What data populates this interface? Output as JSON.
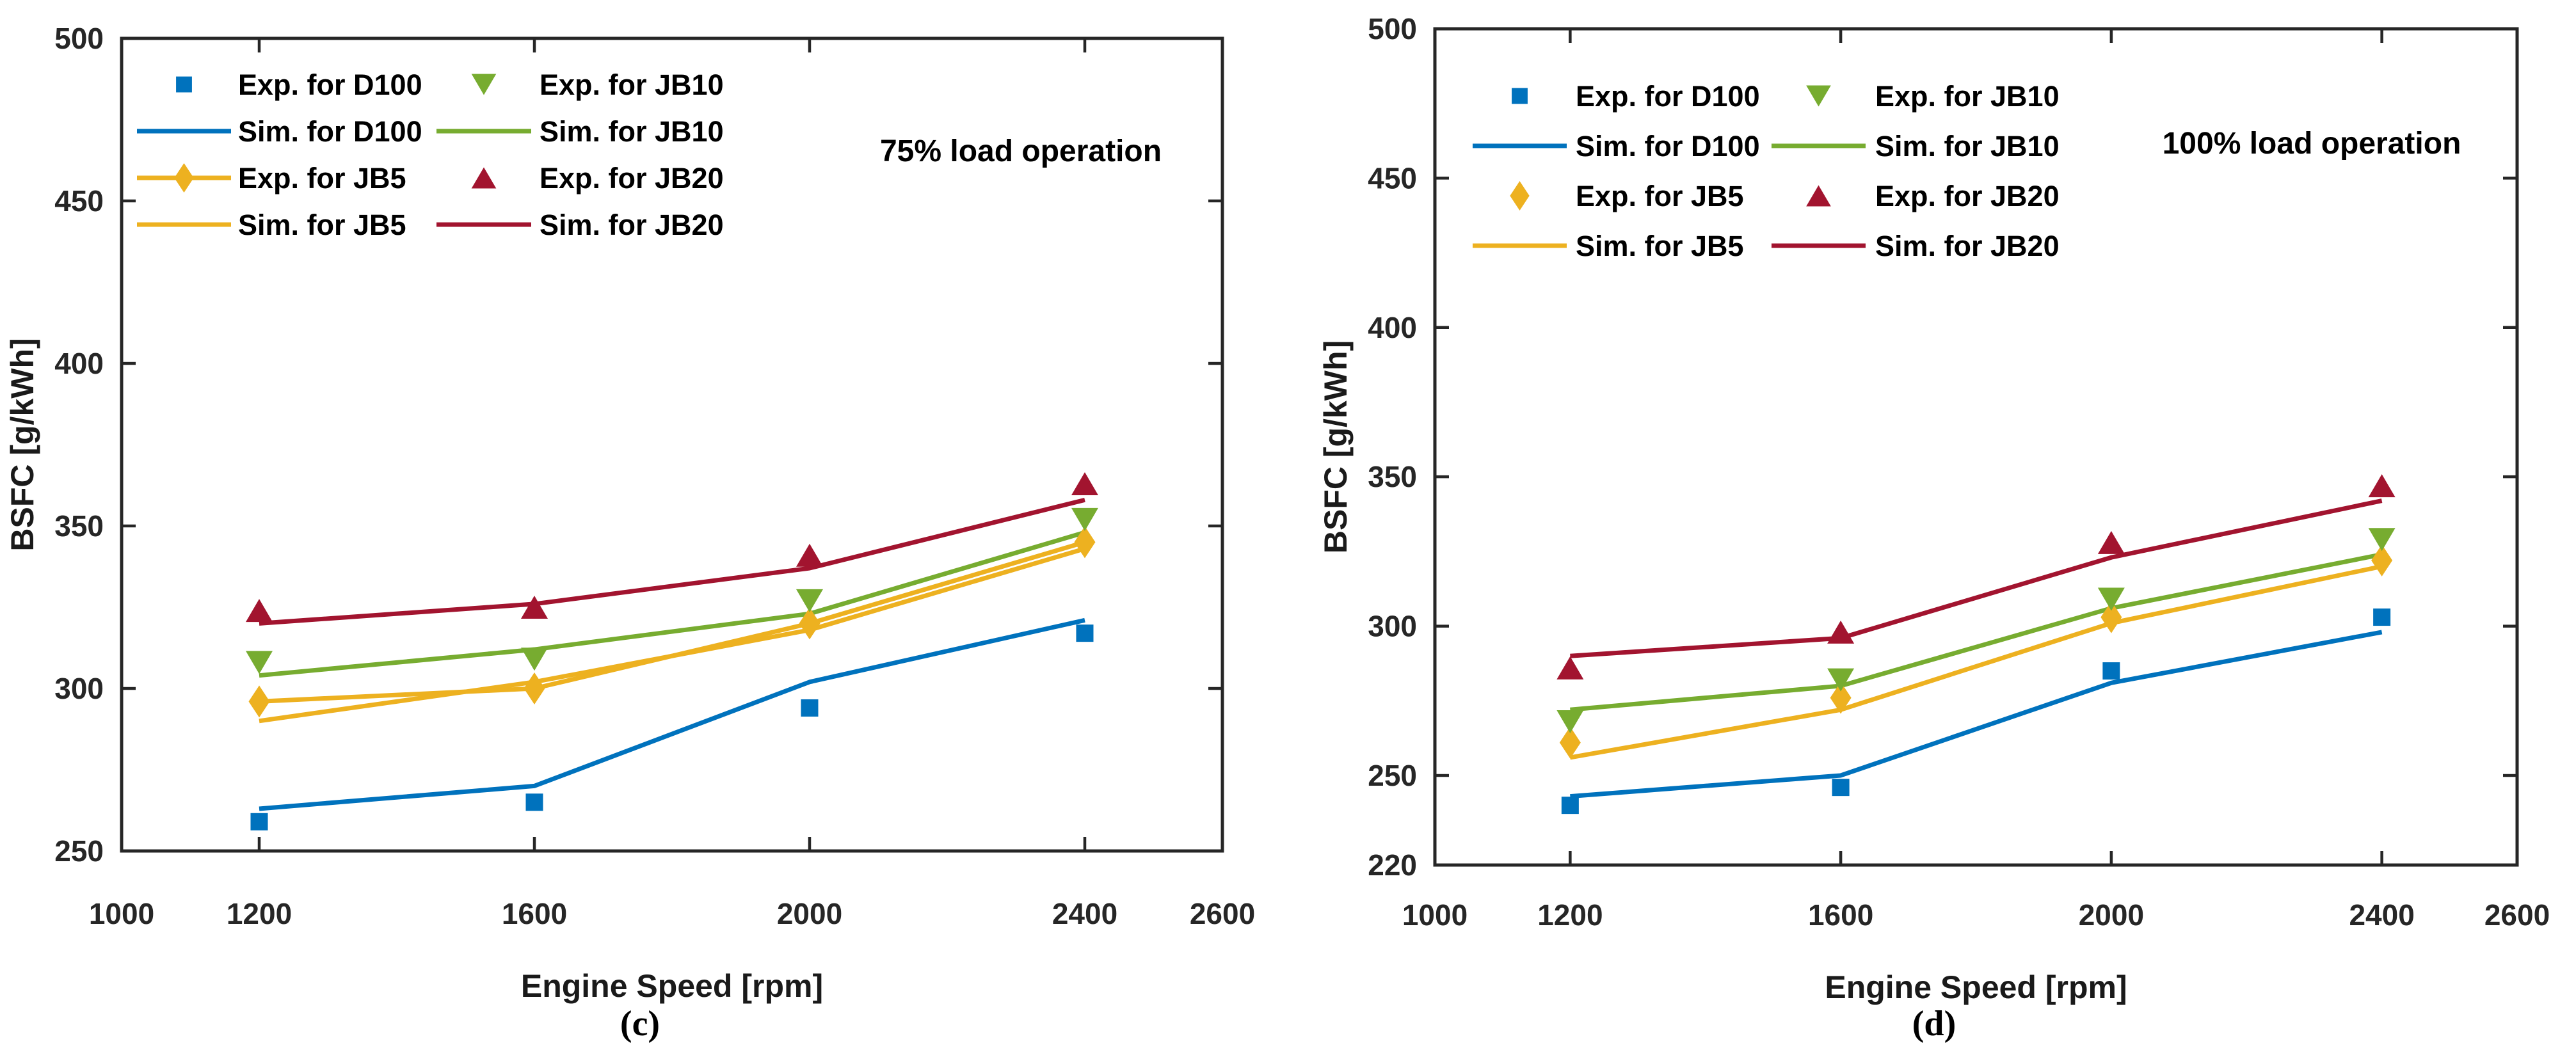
{
  "colors": {
    "D100": "#0072BD",
    "JB5": "#EDB120",
    "JB10": "#77AC30",
    "JB20": "#A2142F",
    "axis": "#262626",
    "text": "#1a1a1a",
    "annotation": "#000000"
  },
  "chart_data": [
    {
      "id": "c",
      "type": "line",
      "caption": "(c)",
      "annotation": "75% load operation",
      "xlabel": "Engine Speed [rpm]",
      "ylabel": "BSFC [g/kWh]",
      "xlim": [
        1000,
        2600
      ],
      "ylim": [
        250,
        500
      ],
      "xticks": [
        1000,
        1200,
        1600,
        2000,
        2400,
        2600
      ],
      "yticks": [
        250,
        300,
        350,
        400,
        450,
        500
      ],
      "grid": false,
      "legend_position": "top-left",
      "x": [
        1200,
        1600,
        2000,
        2400
      ],
      "series": [
        {
          "label": "Exp. for D100",
          "kind": "scatter",
          "marker": "square",
          "color_key": "D100",
          "values": [
            259,
            265,
            294,
            317
          ]
        },
        {
          "label": "Sim. for D100",
          "kind": "line",
          "marker": "none",
          "color_key": "D100",
          "values": [
            263,
            270,
            302,
            321
          ]
        },
        {
          "label": "Exp. for JB5",
          "kind": "scatter-line",
          "marker": "diamond",
          "color_key": "JB5",
          "values": [
            296,
            300,
            320,
            345
          ]
        },
        {
          "label": "Sim. for JB5",
          "kind": "line",
          "marker": "none",
          "color_key": "JB5",
          "values": [
            290,
            302,
            318,
            343
          ]
        },
        {
          "label": "Exp. for JB10",
          "kind": "scatter",
          "marker": "triangle-down",
          "color_key": "JB10",
          "values": [
            308,
            309,
            327,
            352
          ]
        },
        {
          "label": "Sim. for JB10",
          "kind": "line",
          "marker": "none",
          "color_key": "JB10",
          "values": [
            304,
            312,
            323,
            348
          ]
        },
        {
          "label": "Exp. for JB20",
          "kind": "scatter",
          "marker": "triangle-up",
          "color_key": "JB20",
          "values": [
            324,
            325,
            341,
            363
          ]
        },
        {
          "label": "Sim. for JB20",
          "kind": "line",
          "marker": "none",
          "color_key": "JB20",
          "values": [
            320,
            326,
            337,
            358
          ]
        }
      ]
    },
    {
      "id": "d",
      "type": "line",
      "caption": "(d)",
      "annotation": "100% load operation",
      "xlabel": "Engine Speed [rpm]",
      "ylabel": "BSFC [g/kWh]",
      "xlim": [
        1000,
        2600
      ],
      "ylim": [
        220,
        500
      ],
      "xticks": [
        1000,
        1200,
        1600,
        2000,
        2400,
        2600
      ],
      "yticks": [
        220,
        250,
        300,
        350,
        400,
        450,
        500
      ],
      "grid": false,
      "legend_position": "top-left",
      "x": [
        1200,
        1600,
        2000,
        2400
      ],
      "series": [
        {
          "label": "Exp. for D100",
          "kind": "scatter",
          "marker": "square",
          "color_key": "D100",
          "values": [
            240,
            246,
            285,
            303
          ]
        },
        {
          "label": "Sim. for D100",
          "kind": "line",
          "marker": "none",
          "color_key": "D100",
          "values": [
            243,
            250,
            281,
            298
          ]
        },
        {
          "label": "Exp. for JB5",
          "kind": "scatter",
          "marker": "diamond",
          "color_key": "JB5",
          "values": [
            261,
            276,
            303,
            322
          ]
        },
        {
          "label": "Sim. for JB5",
          "kind": "line",
          "marker": "none",
          "color_key": "JB5",
          "values": [
            256,
            272,
            301,
            320
          ]
        },
        {
          "label": "Exp. for JB10",
          "kind": "scatter",
          "marker": "triangle-down",
          "color_key": "JB10",
          "values": [
            268,
            282,
            309,
            329
          ]
        },
        {
          "label": "Sim. for JB10",
          "kind": "line",
          "marker": "none",
          "color_key": "JB10",
          "values": [
            272,
            280,
            306,
            324
          ]
        },
        {
          "label": "Exp. for JB20",
          "kind": "scatter",
          "marker": "triangle-up",
          "color_key": "JB20",
          "values": [
            286,
            298,
            328,
            347
          ]
        },
        {
          "label": "Sim. for JB20",
          "kind": "line",
          "marker": "none",
          "color_key": "JB20",
          "values": [
            290,
            296,
            323,
            342
          ]
        }
      ]
    }
  ]
}
